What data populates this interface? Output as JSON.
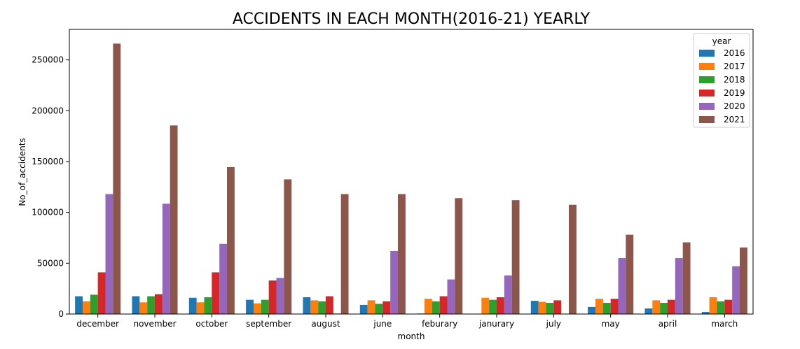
{
  "chart_data": {
    "type": "bar",
    "title": "ACCIDENTS IN EACH MONTH(2016-21) YEARLY",
    "xlabel": "month",
    "ylabel": "No_of_accidents",
    "ylim": [
      0,
      280000
    ],
    "yticks": [
      0,
      50000,
      100000,
      150000,
      200000,
      250000
    ],
    "grid": false,
    "legend": {
      "title": "year",
      "placement": "top-right"
    },
    "categories": [
      "december",
      "november",
      "october",
      "september",
      "august",
      "june",
      "feburary",
      "janurary",
      "july",
      "may",
      "april",
      "march"
    ],
    "series": [
      {
        "name": "2016",
        "color": "#1f77b4",
        "values": [
          17500,
          17500,
          16000,
          14000,
          16500,
          9000,
          500,
          0,
          13000,
          7000,
          5500,
          2000
        ]
      },
      {
        "name": "2017",
        "color": "#ff7f0e",
        "values": [
          12500,
          11500,
          11500,
          10500,
          13500,
          13500,
          15000,
          16000,
          12000,
          15000,
          13500,
          16500
        ]
      },
      {
        "name": "2018",
        "color": "#2ca02c",
        "values": [
          19000,
          17500,
          16500,
          14000,
          12500,
          10000,
          12500,
          14000,
          11000,
          11000,
          11000,
          12500
        ]
      },
      {
        "name": "2019",
        "color": "#d62728",
        "values": [
          41000,
          19500,
          41000,
          33000,
          17500,
          12500,
          17500,
          16500,
          13500,
          15000,
          14000,
          14000
        ]
      },
      {
        "name": "2020",
        "color": "#9467bd",
        "values": [
          118000,
          108500,
          69000,
          35500,
          500,
          62000,
          34000,
          38000,
          0,
          55000,
          55000,
          47000
        ]
      },
      {
        "name": "2021",
        "color": "#8c564b",
        "values": [
          266000,
          185500,
          144500,
          132500,
          118000,
          118000,
          114000,
          112000,
          107500,
          78000,
          70500,
          65500
        ]
      }
    ]
  }
}
